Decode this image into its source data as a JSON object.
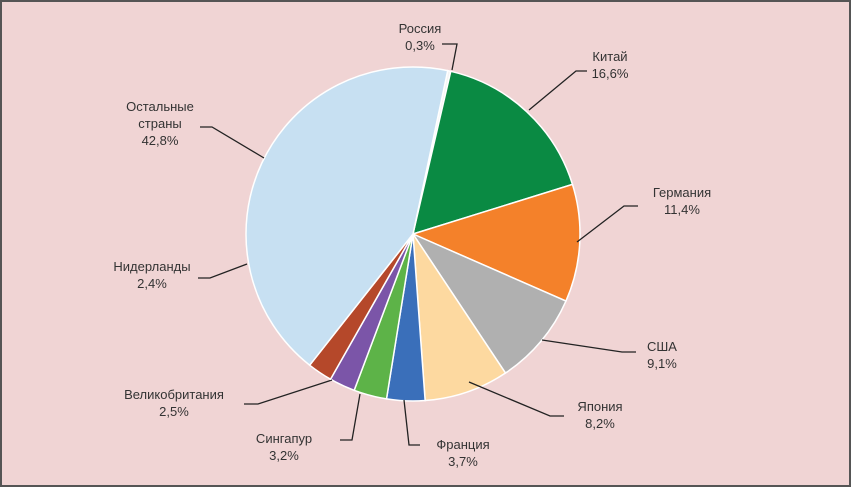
{
  "chart_data": {
    "type": "pie",
    "categories": [
      "Россия",
      "Китай",
      "Германия",
      "США",
      "Япония",
      "Франция",
      "Сингапур",
      "Великобритания",
      "Нидерланды",
      "Остальные страны"
    ],
    "values": [
      0.3,
      16.6,
      11.4,
      9.1,
      8.2,
      3.7,
      3.2,
      2.5,
      2.4,
      42.8
    ],
    "value_labels": [
      "0,3%",
      "16,6%",
      "11,4%",
      "9,1%",
      "8,2%",
      "3,7%",
      "3,2%",
      "2,5%",
      "2,4%",
      "42,8%"
    ],
    "colors": [
      "#f4f4f4",
      "#0a8a43",
      "#f4812a",
      "#b0b0b0",
      "#fdd9a0",
      "#3a6fba",
      "#5db348",
      "#7b55a8",
      "#b5482a",
      "#c7e0f2"
    ]
  }
}
